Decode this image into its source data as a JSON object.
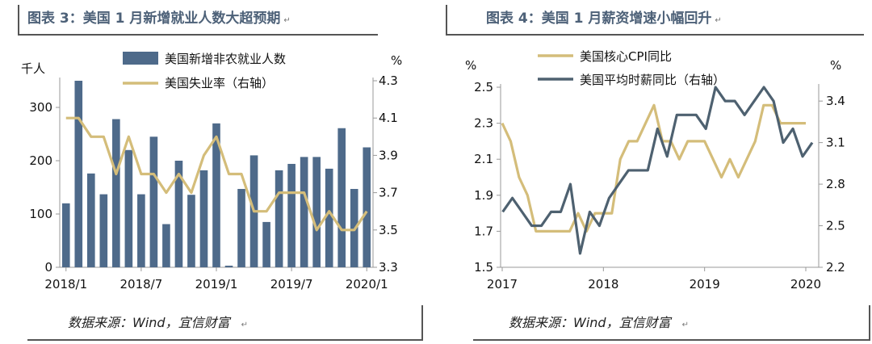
{
  "panels": [
    {
      "title": "图表 3：美国 1 月新增就业人数大超预期",
      "source": "数据来源：Wind，宜信财富"
    },
    {
      "title": "图表 4：美国 1 月薪资增速小幅回升",
      "source": "数据来源：Wind，宜信财富"
    }
  ],
  "chart_data": [
    {
      "type": "bar+line",
      "title": "图表 3：美国 1 月新增就业人数大超预期",
      "left_unit": "千人",
      "right_unit": "%",
      "ylim_left": [
        0,
        350
      ],
      "yticks_left": [
        "0",
        "100",
        "200",
        "300"
      ],
      "ylim_right": [
        3.3,
        4.3
      ],
      "yticks_right": [
        "3.3",
        "3.5",
        "3.7",
        "3.9",
        "4.1",
        "4.3"
      ],
      "x_tick_labels": [
        "2018/1",
        "2018/7",
        "2019/1",
        "2019/7",
        "2020/1"
      ],
      "x_tick_positions": [
        0,
        6,
        12,
        18,
        24
      ],
      "categories": [
        "2018-01",
        "2018-02",
        "2018-03",
        "2018-04",
        "2018-05",
        "2018-06",
        "2018-07",
        "2018-08",
        "2018-09",
        "2018-10",
        "2018-11",
        "2018-12",
        "2019-01",
        "2019-02",
        "2019-03",
        "2019-04",
        "2019-05",
        "2019-06",
        "2019-07",
        "2019-08",
        "2019-09",
        "2019-10",
        "2019-11",
        "2019-12",
        "2020-01"
      ],
      "series": [
        {
          "name": "美国新增非农就业人数",
          "axis": "left",
          "kind": "bar",
          "color": "#4e6a8a",
          "values": [
            120,
            350,
            176,
            137,
            278,
            220,
            137,
            245,
            81,
            200,
            136,
            182,
            270,
            3,
            147,
            210,
            85,
            182,
            194,
            207,
            207,
            185,
            261,
            147,
            225
          ]
        },
        {
          "name": "美国失业率（右轴）",
          "axis": "right",
          "kind": "line",
          "color": "#d4bd7a",
          "values": [
            4.1,
            4.1,
            4.0,
            4.0,
            3.8,
            4.0,
            3.8,
            3.8,
            3.7,
            3.8,
            3.7,
            3.9,
            4.0,
            3.8,
            3.8,
            3.6,
            3.6,
            3.7,
            3.7,
            3.7,
            3.5,
            3.6,
            3.5,
            3.5,
            3.6
          ]
        }
      ]
    },
    {
      "type": "line",
      "title": "图表 4：美国 1 月薪资增速小幅回升",
      "left_unit": "%",
      "right_unit": "%",
      "ylim_left": [
        1.5,
        2.5
      ],
      "yticks_left": [
        "1.5",
        "1.7",
        "1.9",
        "2.1",
        "2.3",
        "2.5"
      ],
      "ylim_right": [
        2.2,
        3.5
      ],
      "yticks_right": [
        "2.2",
        "2.5",
        "2.8",
        "3.1",
        "3.4"
      ],
      "x_tick_labels": [
        "2017",
        "2018",
        "2019",
        "2020"
      ],
      "x_tick_positions": [
        0,
        12,
        24,
        36
      ],
      "series": [
        {
          "name": "美国核心CPI同比",
          "axis": "left",
          "color": "#d4bd7a",
          "values": [
            2.3,
            2.2,
            2.0,
            1.9,
            1.7,
            1.7,
            1.7,
            1.7,
            1.7,
            1.8,
            1.7,
            1.8,
            1.8,
            1.8,
            2.1,
            2.2,
            2.2,
            2.3,
            2.4,
            2.2,
            2.2,
            2.1,
            2.2,
            2.2,
            2.2,
            2.1,
            2.0,
            2.1,
            2.0,
            2.1,
            2.2,
            2.4,
            2.4,
            2.3,
            2.3,
            2.3,
            2.3
          ]
        },
        {
          "name": "美国平均时薪同比（右轴）",
          "axis": "right",
          "color": "#4e6170",
          "values": [
            2.6,
            2.7,
            2.6,
            2.5,
            2.5,
            2.6,
            2.6,
            2.8,
            2.3,
            2.6,
            2.5,
            2.7,
            2.8,
            2.9,
            2.9,
            2.9,
            3.2,
            3.0,
            3.3,
            3.3,
            3.3,
            3.2,
            3.5,
            3.4,
            3.4,
            3.3,
            3.4,
            3.5,
            3.4,
            3.1,
            3.2,
            3.0,
            3.1
          ]
        }
      ]
    }
  ]
}
